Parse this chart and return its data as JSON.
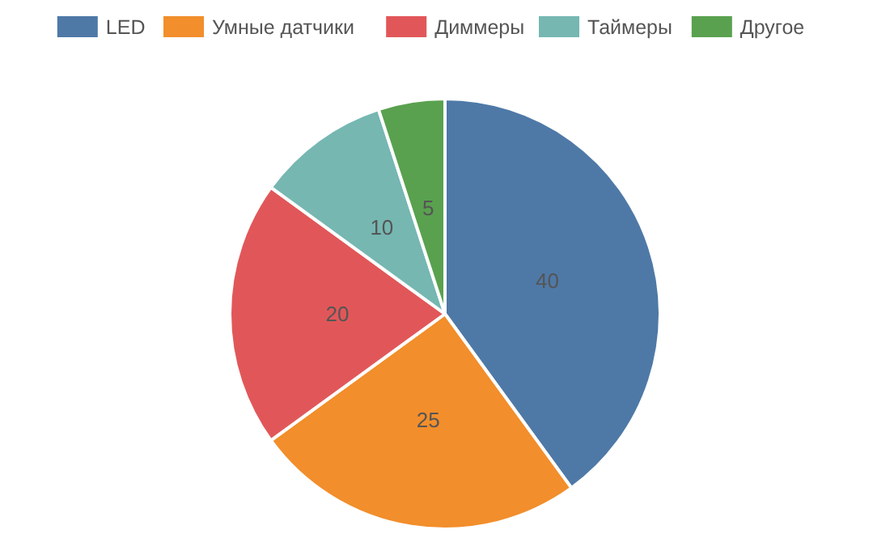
{
  "chart_data": {
    "type": "pie",
    "categories": [
      "LED",
      "Умные датчики",
      "Диммеры",
      "Таймеры",
      "Другое"
    ],
    "values": [
      40,
      25,
      20,
      10,
      5
    ],
    "colors": [
      "#4e79a7",
      "#f28e2b",
      "#e15759",
      "#76b7b2",
      "#59a14f"
    ],
    "data_labels": true,
    "legend": "top"
  }
}
